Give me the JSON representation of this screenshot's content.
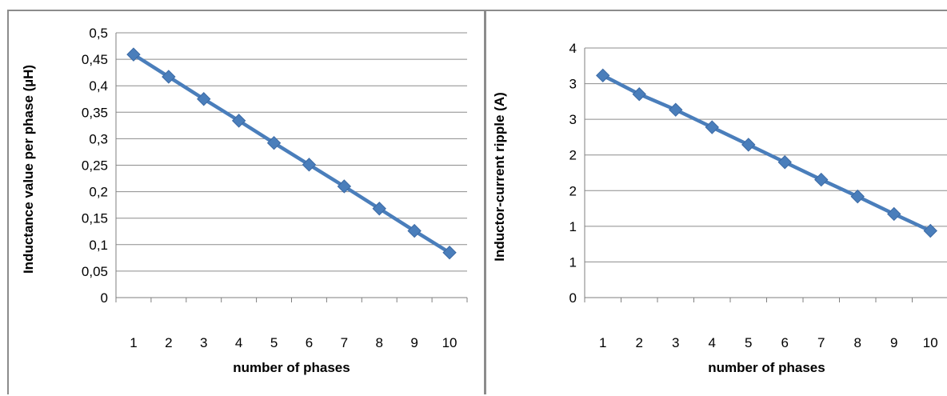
{
  "chart_data": [
    {
      "type": "line",
      "title": "",
      "xlabel": "number of phases",
      "ylabel": "Inductance value per phase (µH)",
      "categories": [
        "1",
        "2",
        "3",
        "4",
        "5",
        "6",
        "7",
        "8",
        "9",
        "10"
      ],
      "y_tick_labels": [
        "0",
        "0,05",
        "0,1",
        "0,15",
        "0,2",
        "0,25",
        "0,3",
        "0,35",
        "0,4",
        "0,45",
        "0,5"
      ],
      "ylim": [
        0,
        0.5
      ],
      "grid": true,
      "legend": "none",
      "series": [
        {
          "values": [
            0.459,
            0.417,
            0.375,
            0.334,
            0.292,
            0.251,
            0.21,
            0.168,
            0.126,
            0.085
          ]
        }
      ],
      "color": "#4a7ebb",
      "marker": "diamond"
    },
    {
      "type": "line",
      "title": "",
      "xlabel": "number of phases",
      "ylabel": "Inductor-current ripple (A)",
      "categories": [
        "1",
        "2",
        "3",
        "4",
        "5",
        "6",
        "7",
        "8",
        "9",
        "10"
      ],
      "y_tick_labels": [
        "0",
        "1",
        "1",
        "2",
        "2",
        "3",
        "3",
        "4"
      ],
      "ylim": [
        0,
        4
      ],
      "grid": true,
      "legend": "none",
      "series": [
        {
          "values": [
            3.56,
            3.26,
            3.01,
            2.73,
            2.45,
            2.17,
            1.89,
            1.62,
            1.34,
            1.07
          ]
        }
      ],
      "color": "#4a7ebb",
      "marker": "diamond"
    }
  ]
}
